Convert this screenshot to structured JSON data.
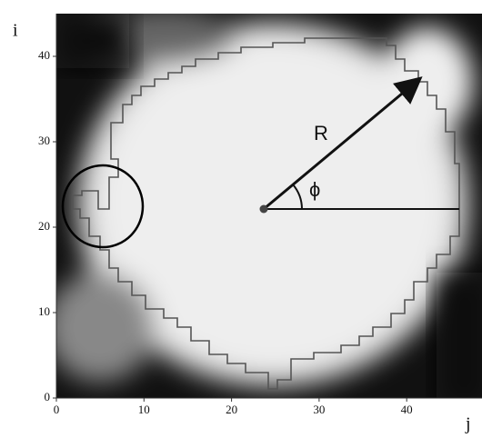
{
  "chart_data": {
    "type": "image",
    "x_label": "j",
    "y_label": "i",
    "annotations": [
      "R",
      "ϕ"
    ],
    "xlim": [
      0,
      48.6
    ],
    "xticks": [
      0,
      10,
      20,
      30,
      40
    ],
    "ylim": [
      0,
      45
    ],
    "yticks": [
      0,
      10,
      20,
      30,
      40
    ]
  }
}
